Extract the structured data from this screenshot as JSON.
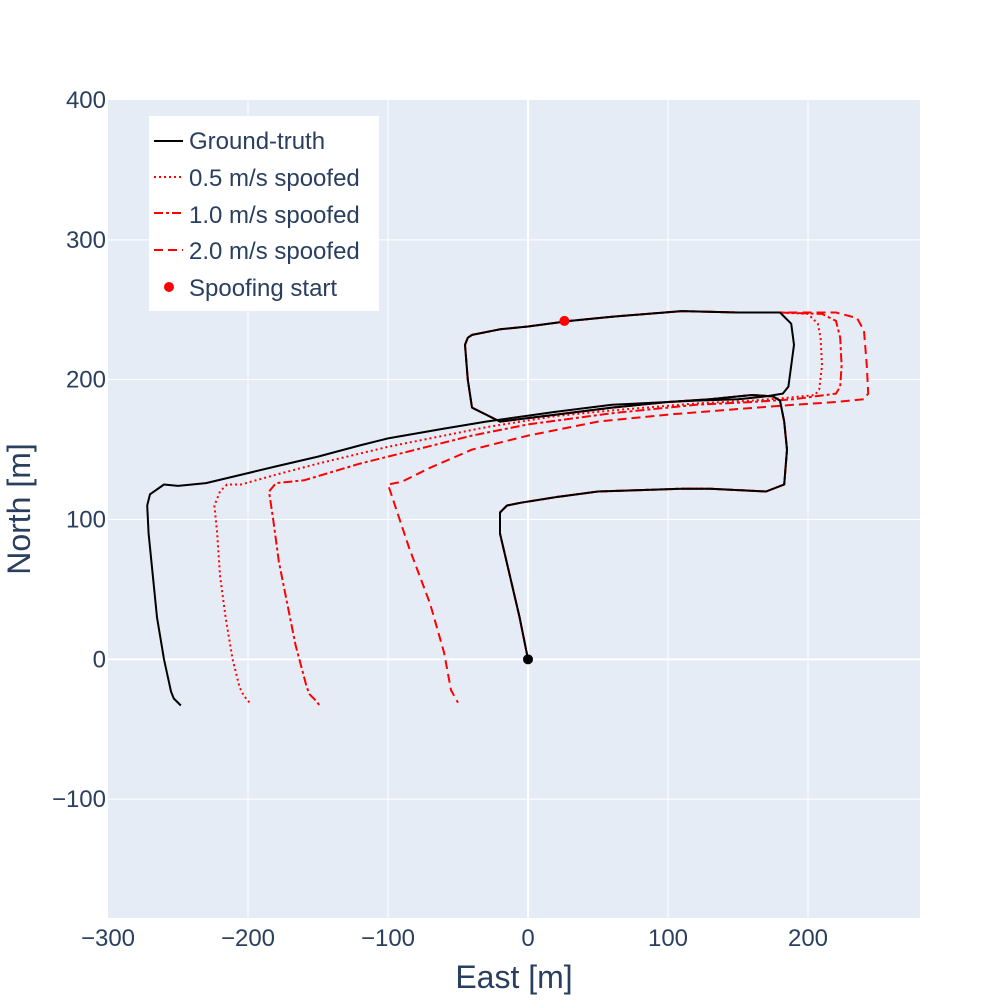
{
  "chart_data": {
    "type": "line",
    "xlabel": "East [m]",
    "ylabel": "North [m]",
    "xlim": [
      -300,
      280
    ],
    "ylim": [
      -185,
      400
    ],
    "xticks": [
      -300,
      -200,
      -100,
      0,
      100,
      200
    ],
    "xtick_labels": [
      "−300",
      "−200",
      "−100",
      "0",
      "100",
      "200"
    ],
    "yticks": [
      -100,
      0,
      100,
      200,
      300,
      400
    ],
    "ytick_labels": [
      "−100",
      "0",
      "100",
      "200",
      "300",
      "400"
    ],
    "grid": true,
    "legend_position": "top-left",
    "colors": {
      "plot_bg": "#e5ecf6",
      "grid": "#ffffff",
      "ground_truth": "#000000",
      "spoofed": "#ff0000"
    },
    "series": [
      {
        "name": "Ground-truth",
        "color": "#000000",
        "dash": "solid",
        "x": [
          0,
          -6,
          -20,
          -20,
          -15,
          -5,
          20,
          50,
          80,
          110,
          130,
          150,
          170,
          183,
          185,
          183,
          180,
          175,
          160,
          130,
          100,
          80,
          60,
          20,
          -20,
          -40,
          -43,
          -45,
          -43,
          -40,
          -20,
          0,
          30,
          60,
          110,
          150,
          180,
          188,
          190,
          188,
          186,
          182,
          170,
          150,
          120,
          100,
          60,
          20,
          -30,
          -60,
          -100,
          -120,
          -150,
          -180,
          -230,
          -250,
          -260,
          -270,
          -272,
          -271,
          -268,
          -265,
          -260,
          -255,
          -253,
          -248
        ],
        "y": [
          0,
          30,
          90,
          105,
          110,
          112,
          116,
          120,
          121,
          122,
          122,
          121,
          120,
          125,
          150,
          170,
          185,
          188,
          189,
          186,
          184,
          182,
          180,
          175,
          170,
          180,
          200,
          225,
          230,
          232,
          236,
          238,
          242,
          245,
          249,
          248,
          248,
          240,
          225,
          210,
          195,
          190,
          188,
          186,
          185,
          184,
          182,
          177,
          170,
          165,
          158,
          153,
          145,
          138,
          126,
          124,
          125,
          118,
          110,
          90,
          60,
          30,
          0,
          -23,
          -28,
          -33
        ]
      },
      {
        "name": "0.5 m/s spoofed",
        "color": "#ff0000",
        "dash": "dot",
        "x": [
          0,
          -6,
          -20,
          -20,
          -15,
          -5,
          20,
          50,
          80,
          110,
          130,
          150,
          170,
          183,
          185,
          183,
          180,
          175,
          160,
          130,
          100,
          80,
          60,
          20,
          -20,
          -40,
          -43,
          -45,
          -43,
          -40,
          -20,
          0,
          30,
          60,
          110,
          150,
          180,
          200,
          207,
          209,
          210,
          208,
          205,
          185,
          160,
          120,
          60,
          20,
          -30,
          -60,
          -100,
          -150,
          -180,
          -205,
          -215,
          -220,
          -224,
          -222,
          -220,
          -216,
          -211,
          -206,
          -203,
          -198
        ],
        "y": [
          0,
          30,
          90,
          105,
          110,
          112,
          116,
          120,
          121,
          122,
          122,
          121,
          120,
          125,
          150,
          170,
          185,
          188,
          189,
          186,
          184,
          182,
          180,
          175,
          170,
          180,
          200,
          225,
          230,
          232,
          236,
          238,
          242,
          245,
          249,
          248,
          248,
          247,
          240,
          230,
          210,
          193,
          189,
          187,
          185,
          183,
          178,
          174,
          166,
          160,
          152,
          140,
          132,
          125,
          125,
          120,
          110,
          90,
          60,
          30,
          0,
          -20,
          -26,
          -32
        ]
      },
      {
        "name": "1.0 m/s spoofed",
        "color": "#ff0000",
        "dash": "dashdot",
        "x": [
          0,
          -6,
          -20,
          -20,
          -15,
          -5,
          20,
          50,
          80,
          110,
          130,
          150,
          170,
          183,
          185,
          183,
          180,
          175,
          160,
          130,
          100,
          80,
          60,
          20,
          -20,
          -40,
          -43,
          -45,
          -43,
          -40,
          -20,
          0,
          30,
          60,
          110,
          150,
          180,
          210,
          220,
          223,
          224,
          223,
          220,
          190,
          160,
          120,
          60,
          0,
          -40,
          -80,
          -120,
          -160,
          -180,
          -185,
          -182,
          -178,
          -172,
          -166,
          -158,
          -156,
          -151,
          -149
        ],
        "y": [
          0,
          30,
          90,
          105,
          110,
          112,
          116,
          120,
          121,
          122,
          122,
          121,
          120,
          125,
          150,
          170,
          185,
          188,
          189,
          186,
          184,
          182,
          180,
          175,
          170,
          180,
          200,
          225,
          230,
          232,
          236,
          238,
          242,
          245,
          249,
          248,
          248,
          247,
          242,
          230,
          210,
          195,
          190,
          186,
          184,
          182,
          176,
          168,
          160,
          150,
          140,
          128,
          126,
          120,
          100,
          70,
          40,
          10,
          -20,
          -25,
          -30,
          -33
        ]
      },
      {
        "name": "2.0 m/s spoofed",
        "color": "#ff0000",
        "dash": "dash",
        "x": [
          0,
          -6,
          -20,
          -20,
          -15,
          -5,
          20,
          50,
          80,
          110,
          130,
          150,
          170,
          183,
          185,
          183,
          180,
          175,
          160,
          130,
          100,
          80,
          60,
          20,
          -20,
          -40,
          -43,
          -45,
          -43,
          -40,
          -20,
          0,
          30,
          60,
          110,
          150,
          180,
          220,
          235,
          240,
          242,
          243,
          240,
          220,
          190,
          150,
          100,
          50,
          0,
          -40,
          -70,
          -90,
          -100,
          -95,
          -85,
          -70,
          -60,
          -55,
          -50
        ],
        "y": [
          0,
          30,
          90,
          105,
          110,
          112,
          116,
          120,
          121,
          122,
          122,
          121,
          120,
          125,
          150,
          170,
          185,
          188,
          189,
          186,
          184,
          182,
          180,
          175,
          170,
          180,
          200,
          225,
          230,
          232,
          236,
          238,
          242,
          245,
          249,
          248,
          248,
          248,
          244,
          235,
          210,
          190,
          186,
          184,
          182,
          179,
          175,
          170,
          160,
          150,
          137,
          127,
          125,
          110,
          80,
          40,
          5,
          -22,
          -31
        ]
      }
    ],
    "markers": [
      {
        "name": "Spoofing start",
        "x": 26,
        "y": 242,
        "color": "#ff0000",
        "show_in_legend": true
      },
      {
        "name": "Origin",
        "x": 0,
        "y": 0,
        "color": "#000000",
        "show_in_legend": false
      }
    ]
  }
}
